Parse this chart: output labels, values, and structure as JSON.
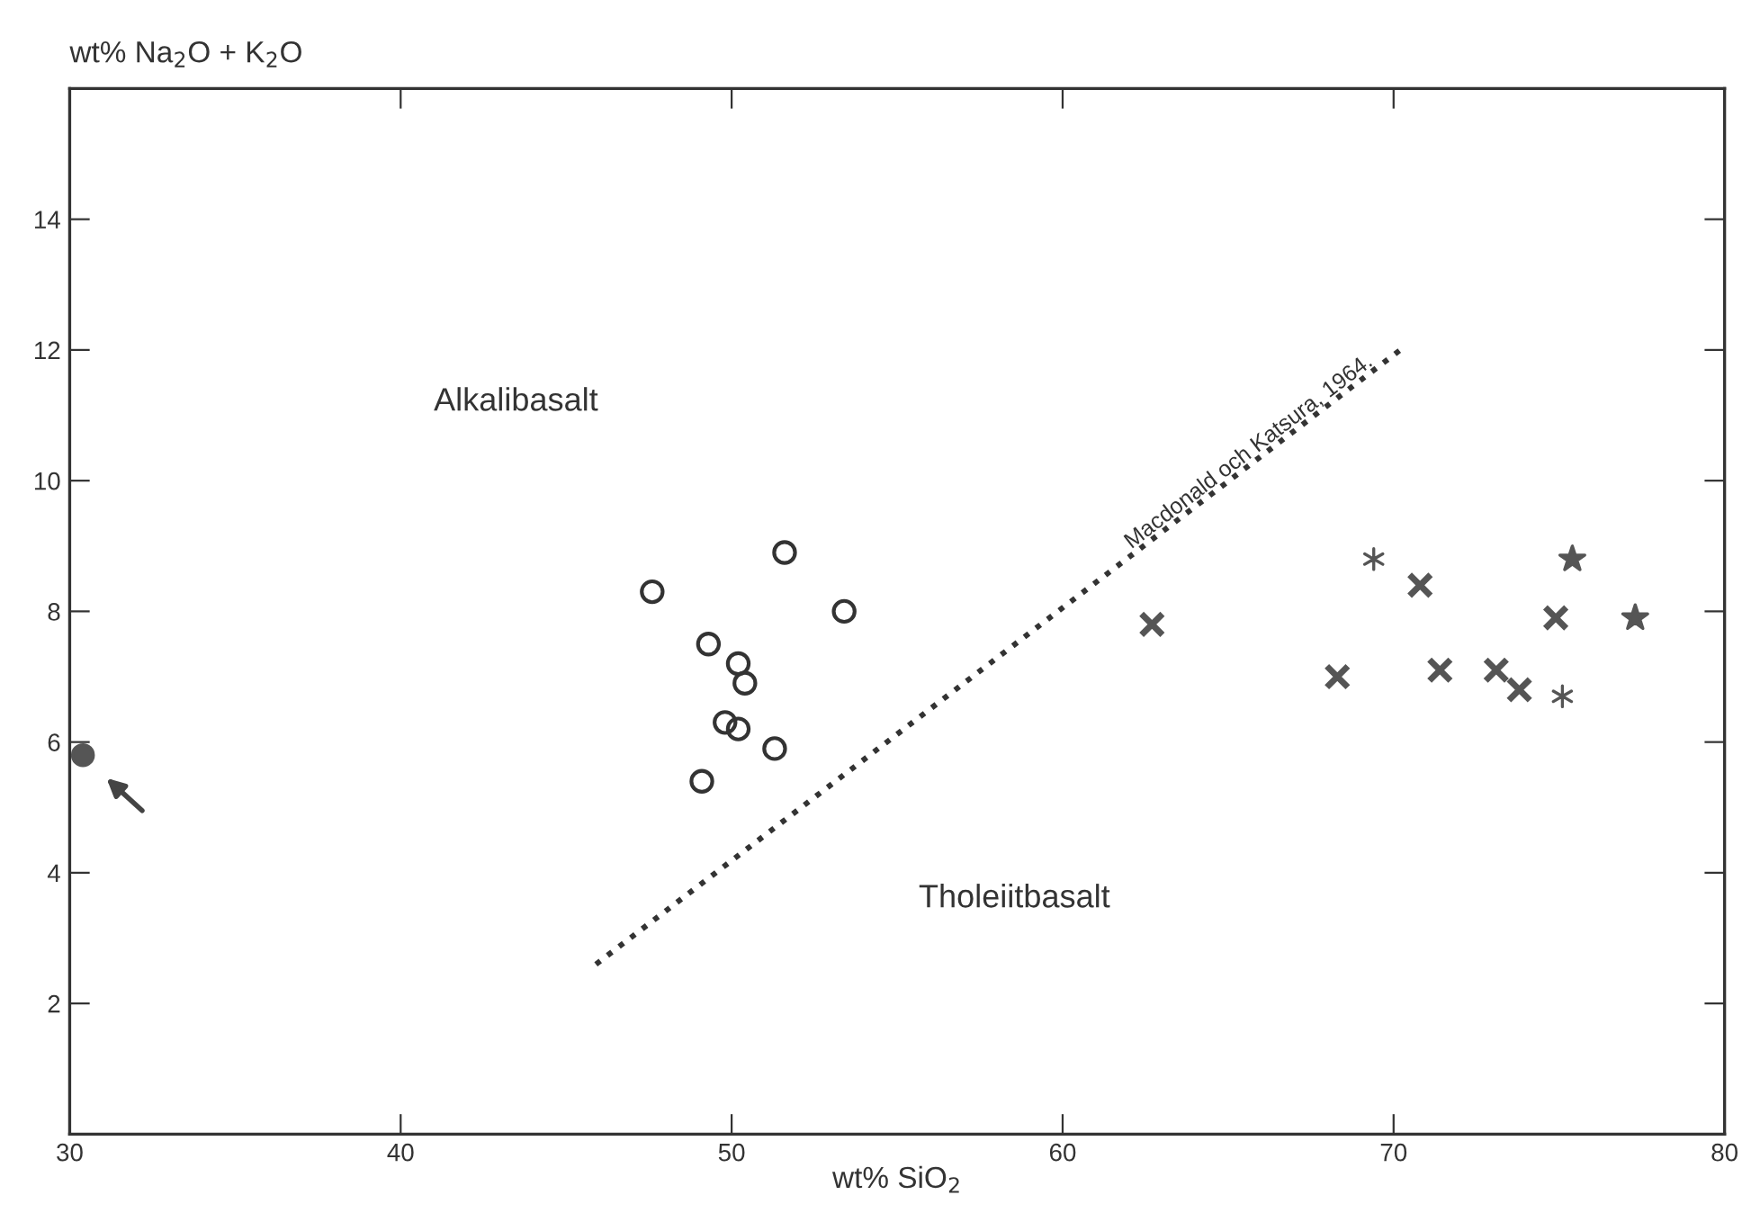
{
  "chart_data": {
    "type": "scatter",
    "xlabel": "wt% SiO$_{2}$",
    "ylabel": "wt% Na$_{2}$O + K$_{2}$O",
    "xlim": [
      30,
      80
    ],
    "ylim": [
      0,
      16
    ],
    "xticks": [
      30,
      40,
      50,
      60,
      70,
      80
    ],
    "yticks": [
      2,
      4,
      6,
      8,
      10,
      12,
      14
    ],
    "grid": false,
    "legend": false,
    "series": [
      {
        "color": "#333333",
        "marker": "circle",
        "x": [
          47.6,
          51.6,
          53.4,
          49.3,
          50.2,
          50.4,
          49.8,
          50.2,
          51.3,
          49.1
        ],
        "values": [
          8.3,
          8.9,
          8.0,
          7.5,
          7.2,
          6.9,
          6.3,
          6.2,
          5.9,
          5.4
        ]
      },
      {
        "color": "#555555",
        "marker": "circle",
        "x": [
          30.4
        ],
        "values": [
          5.8
        ]
      },
      {
        "color": "#555555",
        "marker": "cross",
        "x": [
          62.7,
          68.3,
          70.8,
          71.4,
          73.1,
          73.8,
          74.9
        ],
        "values": [
          7.8,
          7.0,
          8.4,
          7.1,
          7.1,
          6.8,
          7.9
        ]
      },
      {
        "color": "#555555",
        "marker": "cross",
        "x": [
          69.4,
          75.1
        ],
        "values": [
          8.8,
          6.7
        ]
      },
      {
        "color": "#555555",
        "marker": "star",
        "x": [
          75.4,
          77.3
        ],
        "values": [
          8.8,
          7.9
        ]
      },
      {
        "type": "line",
        "color": "#333333",
        "line_style": "dotted",
        "marker": "none",
        "x": [
          45.9,
          70.2
        ],
        "values": [
          2.6,
          12.0
        ]
      }
    ],
    "annotations": [
      "Alkalibasalt",
      "Tholeiitbasalt",
      "Macdonald och Katsura, 1964."
    ]
  }
}
